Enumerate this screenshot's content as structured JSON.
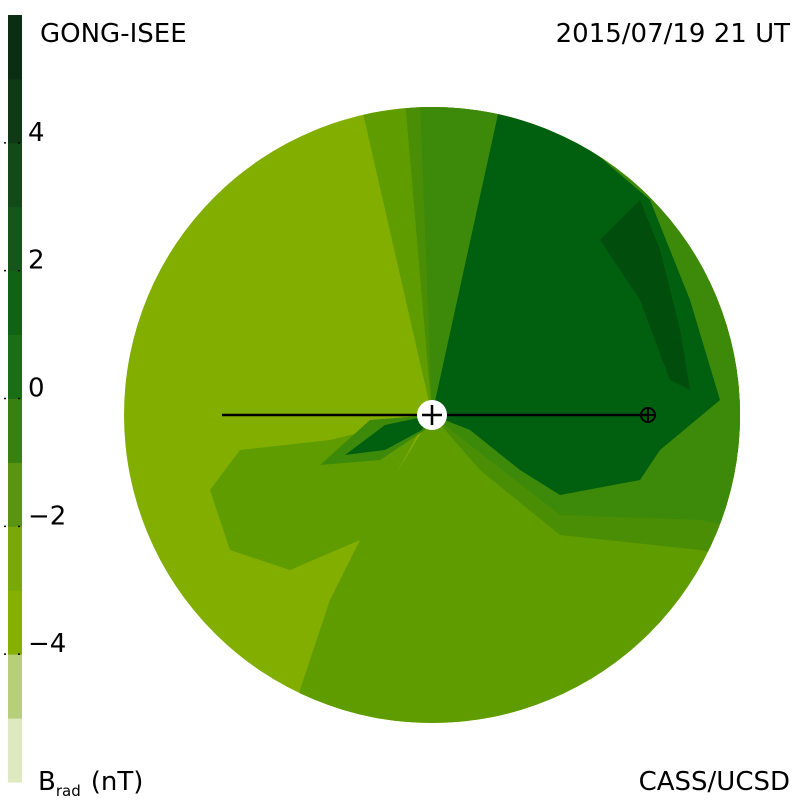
{
  "header": {
    "title": "GONG-ISEE",
    "date": "2015/07/19 21 UT"
  },
  "colorbar": {
    "range": [
      -6,
      6
    ],
    "colors": [
      "#dde9c0",
      "#b6cf78",
      "#86b000",
      "#7aa80a",
      "#5a9410",
      "#3a8010",
      "#1a6e18",
      "#0e6414",
      "#17561b",
      "#134a18",
      "#0f3a15",
      "#0b2e12"
    ],
    "ticks": [
      {
        "value": 4,
        "label": "4"
      },
      {
        "value": 2,
        "label": "2"
      },
      {
        "value": 0,
        "label": "0"
      },
      {
        "value": -2,
        "label": "−2"
      },
      {
        "value": -4,
        "label": "−4"
      }
    ],
    "label": {
      "symbol": "B",
      "subscript": "rad",
      "unit": "(nT)"
    }
  },
  "footer": {
    "credit": "CASS/UCSD"
  }
}
